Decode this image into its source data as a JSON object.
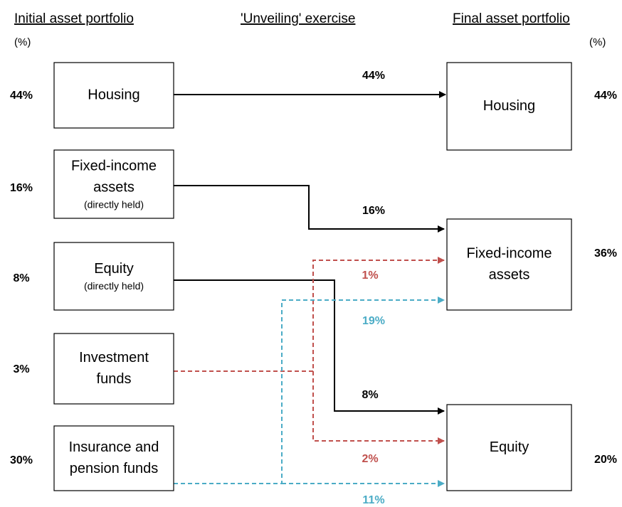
{
  "header": {
    "left": "Initial asset portfolio",
    "middle": "'Unveiling' exercise",
    "right": "Final asset portfolio",
    "left_unit": "(%)",
    "right_unit": "(%)"
  },
  "initial": [
    {
      "lines": [
        "Housing"
      ],
      "share": "44%"
    },
    {
      "lines": [
        "Fixed-income",
        "assets",
        "(directly held)"
      ],
      "share": "16%"
    },
    {
      "lines": [
        "Equity",
        "(directly held)"
      ],
      "share": "8%"
    },
    {
      "lines": [
        "Investment",
        "funds"
      ],
      "share": "3%"
    },
    {
      "lines": [
        "Insurance and",
        "pension funds"
      ],
      "share": "30%"
    }
  ],
  "final": [
    {
      "lines": [
        "Housing"
      ],
      "share": "44%"
    },
    {
      "lines": [
        "Fixed-income",
        "assets"
      ],
      "share": "36%"
    },
    {
      "lines": [
        "Equity"
      ],
      "share": "20%"
    }
  ],
  "flows": [
    {
      "label": "44%"
    },
    {
      "label": "16%"
    },
    {
      "label": "1%"
    },
    {
      "label": "19%"
    },
    {
      "label": "8%"
    },
    {
      "label": "2%"
    },
    {
      "label": "11%"
    }
  ]
}
